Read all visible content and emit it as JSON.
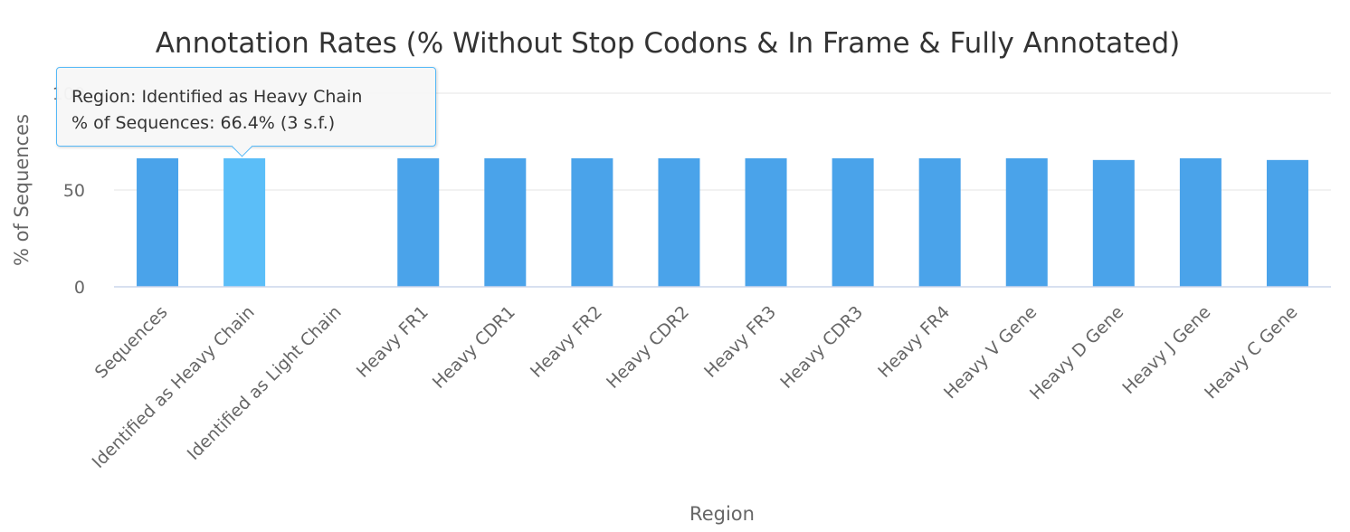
{
  "chart_data": {
    "type": "bar",
    "title": "Annotation Rates (% Without Stop Codons & In Frame & Fully Annotated)",
    "xlabel": "Region",
    "ylabel": "% of Sequences",
    "ylim": [
      0,
      100
    ],
    "yticks": [
      0,
      50,
      100
    ],
    "grid": true,
    "categories": [
      "Sequences",
      "Identified as Heavy Chain",
      "Identified as Light Chain",
      "Heavy FR1",
      "Heavy CDR1",
      "Heavy FR2",
      "Heavy CDR2",
      "Heavy FR3",
      "Heavy CDR3",
      "Heavy FR4",
      "Heavy V Gene",
      "Heavy D Gene",
      "Heavy J Gene",
      "Heavy C Gene"
    ],
    "values": [
      66.4,
      66.4,
      0,
      66.4,
      66.4,
      66.4,
      66.4,
      66.4,
      66.4,
      66.4,
      66.4,
      65.5,
      66.4,
      65.5
    ],
    "highlighted_index": 1,
    "colors": {
      "bar": "#4aa3ea",
      "highlight": "#5bbef8",
      "grid": "#e6e6e6",
      "axis": "#ccd6eb"
    }
  },
  "tooltip": {
    "line1": "Region: Identified as Heavy Chain",
    "line2": "% of Sequences: 66.4% (3 s.f.)"
  }
}
